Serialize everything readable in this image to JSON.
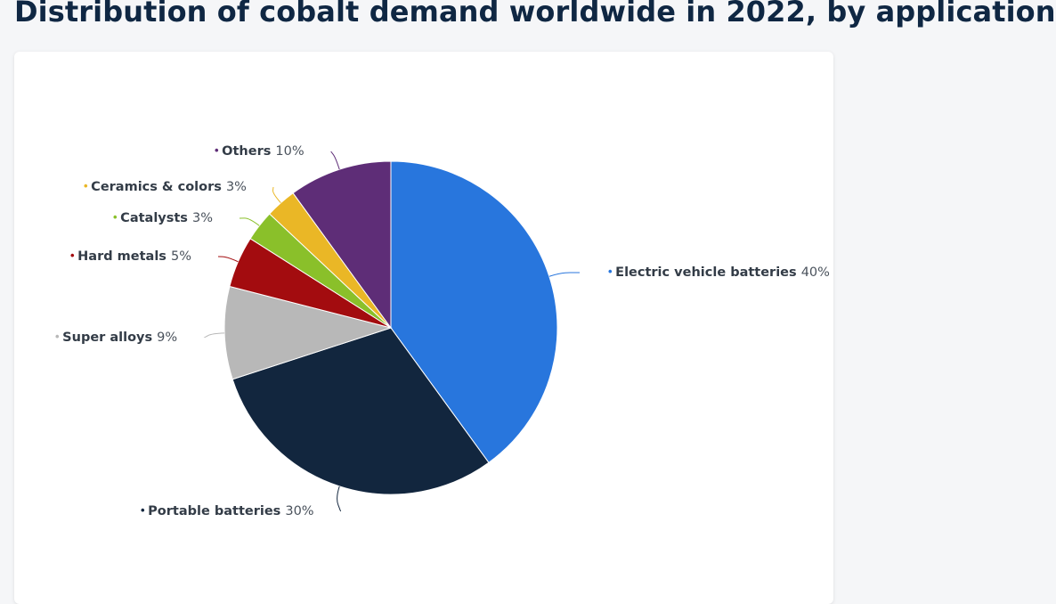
{
  "page": {
    "title": "Distribution of cobalt demand worldwide in 2022, by application"
  },
  "chart_data": {
    "type": "pie",
    "title": "Distribution of cobalt demand worldwide in 2022, by application",
    "unit": "%",
    "slices": [
      {
        "label": "Electric vehicle batteries",
        "value": 40,
        "color": "#2876dd"
      },
      {
        "label": "Portable batteries",
        "value": 30,
        "color": "#12263e"
      },
      {
        "label": "Super alloys",
        "value": 9,
        "color": "#b8b8b8"
      },
      {
        "label": "Hard metals",
        "value": 5,
        "color": "#a30c0f"
      },
      {
        "label": "Catalysts",
        "value": 3,
        "color": "#8ac02a"
      },
      {
        "label": "Ceramics & colors",
        "value": 3,
        "color": "#eab726"
      },
      {
        "label": "Others",
        "value": 10,
        "color": "#5e2d77"
      }
    ]
  }
}
